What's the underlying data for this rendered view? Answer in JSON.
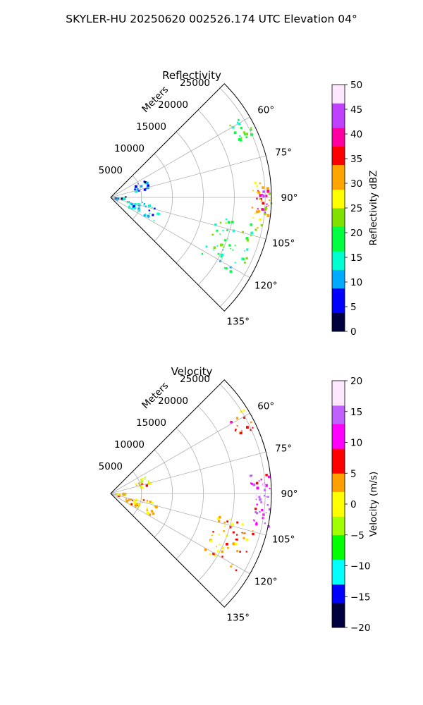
{
  "title": "SKYLER-HU  20250620  002526.174 UTC Elevation 04°",
  "chart_data": [
    {
      "type": "heatmap",
      "subtype": "polar-ppi-sector",
      "title": "Reflectivity",
      "range_label": "Meters",
      "range_ticks": [
        5000,
        10000,
        15000,
        20000,
        25000
      ],
      "range_max": 26000,
      "azimuth_range": [
        45,
        135
      ],
      "azimuth_ticks": [
        "60°",
        "75°",
        "90°",
        "105°",
        "120°",
        "135°"
      ],
      "azimuth_tick_values": [
        60,
        75,
        90,
        105,
        120,
        135
      ],
      "grid": true,
      "colorbar": {
        "label": "Reflectivity dBZ",
        "vmin": 0,
        "vmax": 50,
        "ticks": [
          "0",
          "5",
          "10",
          "15",
          "20",
          "25",
          "30",
          "35",
          "40",
          "45",
          "50"
        ],
        "colors": [
          "#00003c",
          "#0000ff",
          "#00aaff",
          "#00ffd0",
          "#00ff40",
          "#80e000",
          "#ffff00",
          "#ffa500",
          "#ff0000",
          "#ff00a0",
          "#c040ff",
          "#ffe8ff"
        ]
      },
      "echo_regions": [
        {
          "az": [
            82,
            102
          ],
          "range": [
            22500,
            26000
          ],
          "value": 28
        },
        {
          "az": [
            86,
            98
          ],
          "range": [
            23500,
            25500
          ],
          "value": 40
        },
        {
          "az": [
            100,
            122
          ],
          "range": [
            17000,
            24000
          ],
          "value": 18
        },
        {
          "az": [
            57,
            66
          ],
          "range": [
            22500,
            25500
          ],
          "value": 19
        },
        {
          "az": [
            62,
            76
          ],
          "range": [
            4000,
            6500
          ],
          "value": 8
        },
        {
          "az": [
            98,
            118
          ],
          "range": [
            2500,
            8000
          ],
          "value": 11
        },
        {
          "az": [
            85,
            98
          ],
          "range": [
            500,
            2500
          ],
          "value": 9
        }
      ]
    },
    {
      "type": "heatmap",
      "subtype": "polar-ppi-sector",
      "title": "Velocity",
      "range_label": "Meters",
      "range_ticks": [
        5000,
        10000,
        15000,
        20000,
        25000
      ],
      "range_max": 26000,
      "azimuth_range": [
        45,
        135
      ],
      "azimuth_ticks": [
        "60°",
        "75°",
        "90°",
        "105°",
        "120°",
        "135°"
      ],
      "azimuth_tick_values": [
        60,
        75,
        90,
        105,
        120,
        135
      ],
      "grid": true,
      "colorbar": {
        "label": "Velocity (m/s)",
        "vmin": -20,
        "vmax": 20,
        "ticks": [
          "−20",
          "−15",
          "−10",
          "−5",
          "0",
          "5",
          "10",
          "15",
          "20"
        ],
        "colors": [
          "#00003c",
          "#0000ff",
          "#00ffff",
          "#00ff00",
          "#a0ff00",
          "#ffff00",
          "#ffa000",
          "#ff0000",
          "#ff00ff",
          "#c060ff",
          "#ffe8ff"
        ]
      },
      "echo_regions": [
        {
          "az": [
            82,
            102
          ],
          "range": [
            22500,
            26000
          ],
          "value": 12
        },
        {
          "az": [
            86,
            98
          ],
          "range": [
            23500,
            25500
          ],
          "value": 15
        },
        {
          "az": [
            100,
            122
          ],
          "range": [
            17000,
            24000
          ],
          "value": 4
        },
        {
          "az": [
            57,
            66
          ],
          "range": [
            22500,
            25500
          ],
          "value": 5
        },
        {
          "az": [
            62,
            76
          ],
          "range": [
            4000,
            6500
          ],
          "value": 1
        },
        {
          "az": [
            98,
            118
          ],
          "range": [
            2500,
            8000
          ],
          "value": 1
        },
        {
          "az": [
            85,
            98
          ],
          "range": [
            500,
            2500
          ],
          "value": 1
        }
      ]
    }
  ]
}
